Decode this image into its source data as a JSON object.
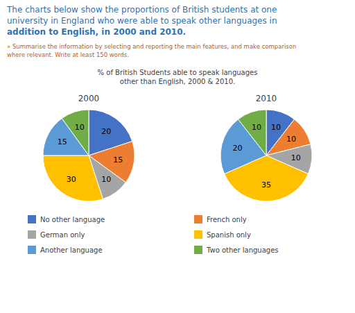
{
  "title": [
    "The charts below show the proportions of British students at one",
    "university in England who were able to speak other languages in",
    "addition to English, in 2000 and 2010."
  ],
  "subtitle": [
    "» Summarise the information by selecting and reporting the main features, and make comparison",
    "where relevant. Write at least 150 words."
  ],
  "annotations": [
    "% of British Students able to speak languages",
    "other than English, 2000 & 2010."
  ],
  "chart_data": [
    {
      "type": "pie",
      "title": "2000",
      "categories": [
        "No other language",
        "French only",
        "German only",
        "Spanish only",
        "Another language",
        "Two other languages"
      ],
      "values": [
        20,
        15,
        10,
        30,
        15,
        10
      ],
      "colors": [
        "#4472C4",
        "#ED7D31",
        "#A5A5A5",
        "#FFC000",
        "#5B9BD5",
        "#70AD47"
      ],
      "data_labels": true,
      "legend": "bottom"
    },
    {
      "type": "pie",
      "title": "2010",
      "values": [
        10,
        10,
        10,
        35,
        20,
        10
      ],
      "colors": [
        "#4472C4",
        "#ED7D31",
        "#A5A5A5",
        "#FFC000",
        "#5B9BD5",
        "#70AD47"
      ],
      "data_labels": true
    }
  ]
}
